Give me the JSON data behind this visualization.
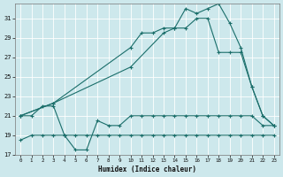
{
  "title": "",
  "xlabel": "Humidex (Indice chaleur)",
  "ylabel": "",
  "bg_color": "#cde8ec",
  "line_color": "#1a6e6a",
  "grid_color": "#ffffff",
  "xlim": [
    -0.5,
    23.5
  ],
  "ylim": [
    17,
    32.5
  ],
  "yticks": [
    17,
    19,
    21,
    23,
    25,
    27,
    29,
    31
  ],
  "xticks": [
    0,
    1,
    2,
    3,
    4,
    5,
    6,
    7,
    8,
    9,
    10,
    11,
    12,
    13,
    14,
    15,
    16,
    17,
    18,
    19,
    20,
    21,
    22,
    23
  ],
  "series": [
    {
      "x": [
        0,
        1,
        2,
        3,
        4,
        5,
        6,
        7,
        8,
        9,
        10,
        11,
        12,
        13,
        14,
        15,
        16,
        17,
        18,
        19,
        20,
        21,
        22,
        23
      ],
      "y": [
        18.5,
        19,
        19,
        19,
        19,
        19,
        19,
        19,
        19,
        19,
        19,
        19,
        19,
        19,
        19,
        19,
        19,
        19,
        19,
        19,
        19,
        19,
        19,
        19
      ]
    },
    {
      "x": [
        0,
        1,
        2,
        3,
        4,
        5,
        6,
        7,
        8,
        9,
        10,
        11,
        12,
        13,
        14,
        15,
        16,
        17,
        18,
        19,
        20,
        21,
        22,
        23
      ],
      "y": [
        21,
        21,
        22,
        22,
        19,
        17.5,
        17.5,
        20.5,
        20,
        20,
        21,
        21,
        21,
        21,
        21,
        21,
        21,
        21,
        21,
        21,
        21,
        21,
        20,
        20
      ]
    },
    {
      "x": [
        0,
        3,
        10,
        13,
        14,
        15,
        16,
        17,
        18,
        19,
        20,
        21,
        22,
        23
      ],
      "y": [
        21,
        22.3,
        26,
        29.5,
        30,
        30,
        31,
        31,
        27.5,
        27.5,
        27.5,
        24,
        21,
        20
      ]
    },
    {
      "x": [
        0,
        3,
        10,
        11,
        12,
        13,
        14,
        15,
        16,
        17,
        18,
        19,
        20,
        21,
        22,
        23
      ],
      "y": [
        21,
        22.3,
        28,
        29.5,
        29.5,
        30,
        30,
        32,
        31.5,
        32,
        32.5,
        30.5,
        28,
        24,
        21,
        20
      ]
    }
  ]
}
